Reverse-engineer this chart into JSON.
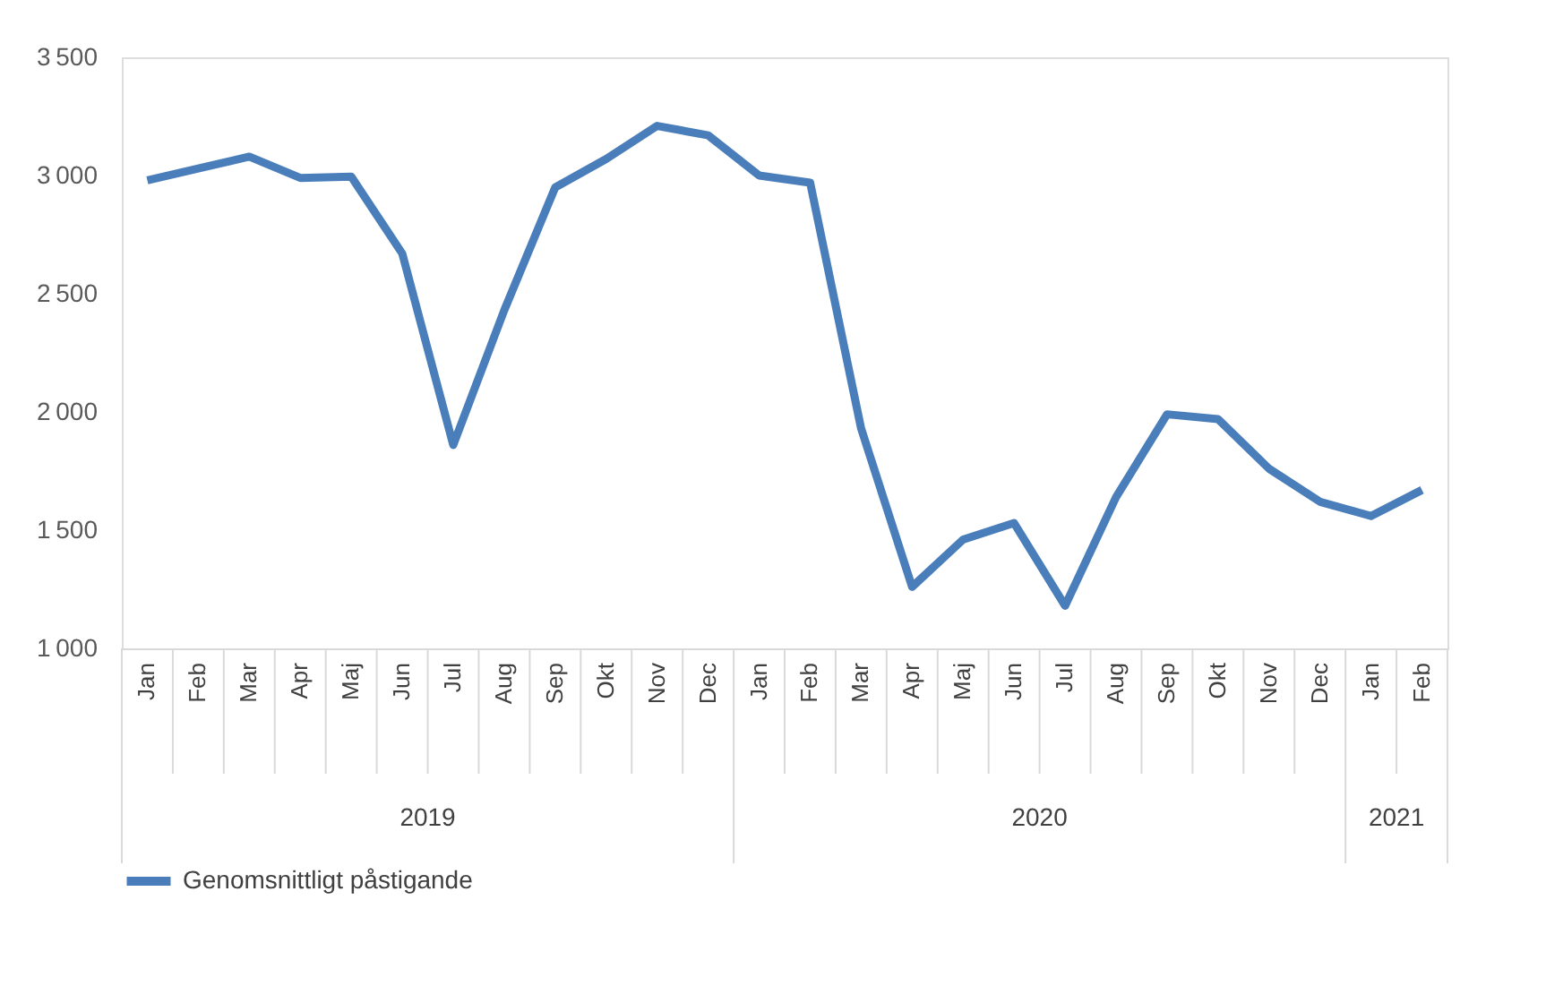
{
  "chart_data": {
    "type": "line",
    "categories": [
      "Jan",
      "Feb",
      "Mar",
      "Apr",
      "Maj",
      "Jun",
      "Jul",
      "Aug",
      "Sep",
      "Okt",
      "Nov",
      "Dec",
      "Jan",
      "Feb",
      "Mar",
      "Apr",
      "Maj",
      "Jun",
      "Jul",
      "Aug",
      "Sep",
      "Okt",
      "Nov",
      "Dec",
      "Jan",
      "Feb"
    ],
    "annotations": [
      "2019",
      "2020",
      "2021"
    ],
    "series": [
      {
        "name": "Genomsnittligt påstigande",
        "color": "#4a7ebb",
        "values": [
          2980,
          3030,
          3080,
          2990,
          2995,
          2670,
          1860,
          2430,
          2950,
          3070,
          3210,
          3170,
          3000,
          2970,
          1930,
          1260,
          1460,
          1530,
          1180,
          1640,
          1990,
          1970,
          1760,
          1620,
          1560,
          1670
        ]
      }
    ],
    "ylim": [
      1000,
      3500
    ],
    "yticks": [
      1000,
      1500,
      2000,
      2500,
      3000,
      3500
    ],
    "grid": false,
    "legend": "bottom",
    "marker": "none",
    "line_style": "solid"
  }
}
